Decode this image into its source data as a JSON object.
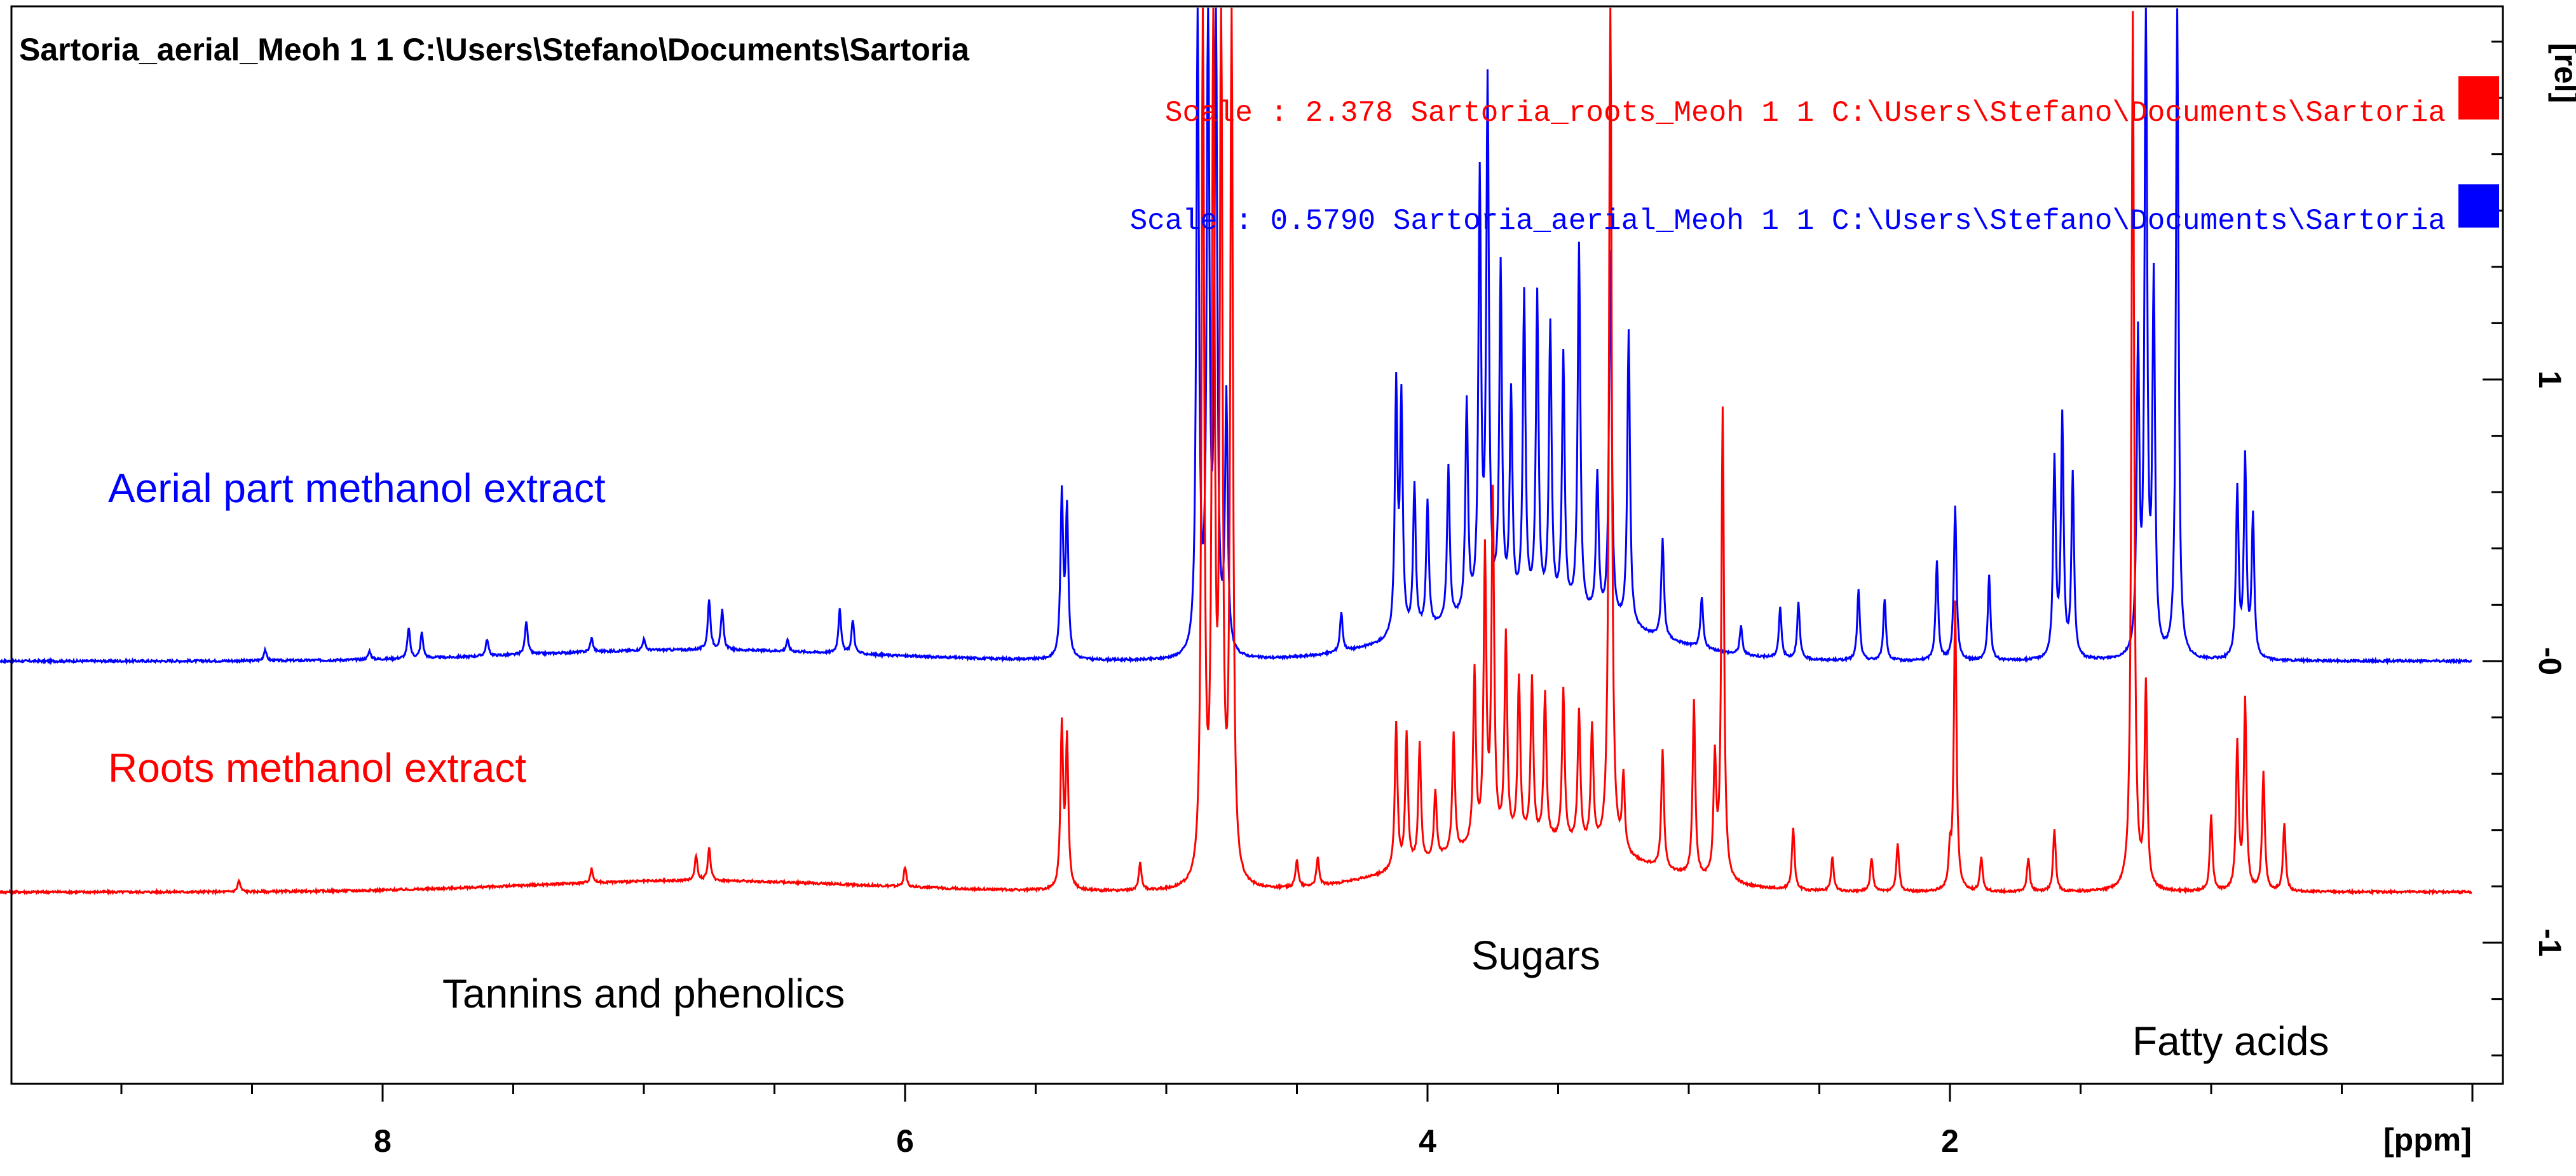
{
  "header": {
    "title": "Sartoria_aerial_Meoh  1  1  C:\\Users\\Stefano\\Documents\\Sartoria"
  },
  "legend": {
    "entries": [
      {
        "text": "Scale : 2.378   Sartoria_roots_Meoh  1  1  C:\\Users\\Stefano\\Documents\\Sartoria",
        "color": "#ff0000"
      },
      {
        "text": "Scale : 0.5790   Sartoria_aerial_Meoh  1  1  C:\\Users\\Stefano\\Documents\\Sartoria",
        "color": "#0000ff"
      }
    ]
  },
  "annotations": {
    "aerial": "Aerial part methanol extract",
    "roots": "Roots methanol extract",
    "tannins": "Tannins and phenolics",
    "sugars": "Sugars",
    "fatty": "Fatty acids"
  },
  "chart_data": {
    "type": "line",
    "title": "Sartoria_aerial_Meoh  1  1  C:\\Users\\Stefano\\Documents\\Sartoria",
    "xlabel": "[ppm]",
    "ylabel": "[rel]",
    "xlim": [
      9.5,
      0.0
    ],
    "ylim": [
      -1.45,
      2.3
    ],
    "x_reversed": true,
    "x_ticks": [
      8,
      6,
      4,
      2
    ],
    "x_tick_labels": [
      "8",
      "6",
      "4",
      "2"
    ],
    "y_ticks": [
      1,
      0,
      -1
    ],
    "y_tick_labels": [
      "1",
      "-0",
      "-1"
    ],
    "grid": false,
    "legend_position": "top-right",
    "series": [
      {
        "name": "Sartoria_aerial_Meoh",
        "color": "#0000ff",
        "baseline": 0.0,
        "peaks": [
          [
            8.45,
            0.04
          ],
          [
            8.05,
            0.03
          ],
          [
            7.9,
            0.11
          ],
          [
            7.85,
            0.09
          ],
          [
            7.6,
            0.06
          ],
          [
            7.45,
            0.12
          ],
          [
            7.2,
            0.05
          ],
          [
            7.0,
            0.04
          ],
          [
            6.75,
            0.18
          ],
          [
            6.7,
            0.14
          ],
          [
            6.45,
            0.04
          ],
          [
            6.25,
            0.16
          ],
          [
            6.2,
            0.12
          ],
          [
            5.4,
            0.58
          ],
          [
            5.38,
            0.52
          ],
          [
            4.88,
            2.3
          ],
          [
            4.84,
            2.3
          ],
          [
            4.81,
            2.3
          ],
          [
            4.77,
            0.9
          ],
          [
            4.33,
            0.14
          ],
          [
            4.12,
            0.88
          ],
          [
            4.1,
            0.82
          ],
          [
            4.05,
            0.52
          ],
          [
            4.0,
            0.45
          ],
          [
            3.92,
            0.55
          ],
          [
            3.85,
            0.75
          ],
          [
            3.8,
            1.52
          ],
          [
            3.77,
            1.85
          ],
          [
            3.72,
            1.2
          ],
          [
            3.68,
            0.75
          ],
          [
            3.63,
            1.1
          ],
          [
            3.58,
            1.1
          ],
          [
            3.53,
            1.0
          ],
          [
            3.48,
            0.9
          ],
          [
            3.42,
            1.3
          ],
          [
            3.35,
            0.5
          ],
          [
            3.3,
            1.3
          ],
          [
            3.23,
            1.05
          ],
          [
            3.1,
            0.35
          ],
          [
            2.95,
            0.18
          ],
          [
            2.8,
            0.1
          ],
          [
            2.65,
            0.18
          ],
          [
            2.58,
            0.2
          ],
          [
            2.35,
            0.25
          ],
          [
            2.25,
            0.22
          ],
          [
            2.05,
            0.35
          ],
          [
            1.98,
            0.55
          ],
          [
            1.85,
            0.3
          ],
          [
            1.6,
            0.7
          ],
          [
            1.57,
            0.85
          ],
          [
            1.53,
            0.65
          ],
          [
            1.28,
            1.1
          ],
          [
            1.25,
            2.3
          ],
          [
            1.22,
            1.3
          ],
          [
            1.13,
            2.3
          ],
          [
            0.9,
            0.6
          ],
          [
            0.87,
            0.7
          ],
          [
            0.84,
            0.5
          ]
        ]
      },
      {
        "name": "Sartoria_roots_Meoh",
        "color": "#ff0000",
        "baseline": -0.82,
        "peaks": [
          [
            8.55,
            -0.78
          ],
          [
            7.2,
            -0.77
          ],
          [
            6.8,
            -0.73
          ],
          [
            6.75,
            -0.7
          ],
          [
            6.0,
            -0.75
          ],
          [
            5.4,
            -0.25
          ],
          [
            5.38,
            -0.3
          ],
          [
            5.1,
            -0.72
          ],
          [
            4.86,
            2.3
          ],
          [
            4.82,
            2.3
          ],
          [
            4.79,
            2.3
          ],
          [
            4.75,
            2.3
          ],
          [
            4.5,
            -0.72
          ],
          [
            4.42,
            -0.72
          ],
          [
            4.12,
            -0.3
          ],
          [
            4.08,
            -0.35
          ],
          [
            4.03,
            -0.4
          ],
          [
            3.97,
            -0.58
          ],
          [
            3.9,
            -0.4
          ],
          [
            3.82,
            -0.2
          ],
          [
            3.78,
            0.2
          ],
          [
            3.75,
            0.4
          ],
          [
            3.7,
            -0.1
          ],
          [
            3.65,
            -0.25
          ],
          [
            3.6,
            -0.25
          ],
          [
            3.55,
            -0.3
          ],
          [
            3.48,
            -0.28
          ],
          [
            3.42,
            -0.35
          ],
          [
            3.37,
            -0.4
          ],
          [
            3.3,
            2.3
          ],
          [
            3.25,
            -0.55
          ],
          [
            3.1,
            -0.4
          ],
          [
            2.98,
            -0.2
          ],
          [
            2.9,
            -0.4
          ],
          [
            2.87,
            0.85
          ],
          [
            2.6,
            -0.6
          ],
          [
            2.45,
            -0.7
          ],
          [
            2.3,
            -0.7
          ],
          [
            2.2,
            -0.65
          ],
          [
            2.0,
            -0.7
          ],
          [
            1.98,
            0.2
          ],
          [
            1.88,
            -0.7
          ],
          [
            1.7,
            -0.7
          ],
          [
            1.6,
            -0.6
          ],
          [
            1.3,
            2.3
          ],
          [
            1.25,
            -0.1
          ],
          [
            1.0,
            -0.55
          ],
          [
            0.9,
            -0.3
          ],
          [
            0.87,
            -0.15
          ],
          [
            0.8,
            -0.4
          ],
          [
            0.72,
            -0.58
          ]
        ]
      }
    ]
  }
}
